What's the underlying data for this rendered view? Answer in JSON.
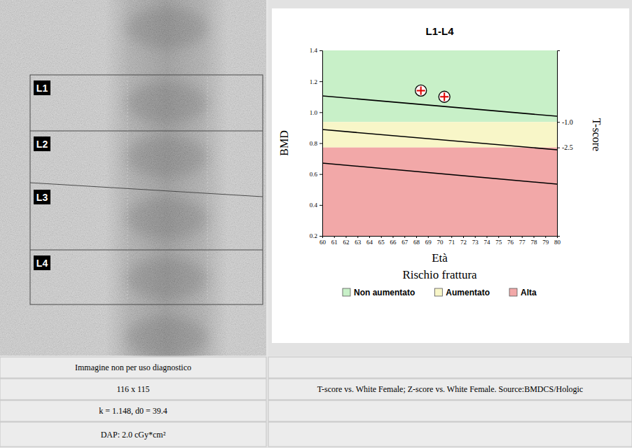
{
  "chart_data": {
    "type": "scatter",
    "title": "L1-L4",
    "x_label": "Età",
    "y_label": "BMD",
    "y2_label": "T-score",
    "legend_title": "Rischio frattura",
    "legend": "bottom",
    "grid": false,
    "x": [
      68.4,
      70.4
    ],
    "values": [
      1.14,
      1.1
    ],
    "color": "#e00000",
    "marker": "circle-cross",
    "xlim": [
      60,
      80
    ],
    "xticks": [
      60,
      61,
      62,
      63,
      64,
      65,
      66,
      67,
      68,
      69,
      70,
      71,
      72,
      73,
      74,
      75,
      76,
      77,
      78,
      79,
      80
    ],
    "ylim": [
      0.2,
      1.4
    ],
    "yticks": [
      0.2,
      0.4,
      0.6,
      0.8,
      {
        "value": 1,
        "label": "1.0"
      },
      1.2,
      1.4
    ],
    "y2lim": [
      -7.7,
      3.21
    ],
    "y2ticks": [
      {
        "value": -1,
        "label": "-1.0"
      },
      {
        "value": -2.5,
        "label": "-2.5"
      }
    ],
    "bands": [
      {
        "name": "Non aumentato",
        "color": "#c8f0c8",
        "range": [
          -1,
          3.21
        ]
      },
      {
        "name": "Aumentato",
        "color": "#f8f6c8",
        "range": [
          -2.5,
          -1
        ]
      },
      {
        "name": "Alta",
        "color": "#f2a8a8",
        "range": [
          -7.7,
          -2.5
        ]
      }
    ],
    "reference_lines": [
      {
        "x": [
          60,
          80
        ],
        "values": [
          1.106,
          0.974
        ],
        "color": "#000000"
      },
      {
        "x": [
          60,
          80
        ],
        "values": [
          0.888,
          0.757
        ],
        "color": "#000000"
      },
      {
        "x": [
          60,
          80
        ],
        "values": [
          0.671,
          0.535
        ],
        "color": "#000000"
      }
    ]
  },
  "image_panel": {
    "labels": [
      "L1",
      "L2",
      "L3",
      "L4"
    ]
  },
  "footer": {
    "rows": [
      [
        "Immagine non per uso diagnostico",
        null
      ],
      [
        "116 x 115",
        "T-score vs. White Female; Z-score vs. White Female. Source:BMDCS/Hologic"
      ],
      [
        "k = 1.148, d0 = 39.4",
        null
      ],
      [
        "DAP: 2.0 cGy*cm²",
        null
      ]
    ]
  }
}
